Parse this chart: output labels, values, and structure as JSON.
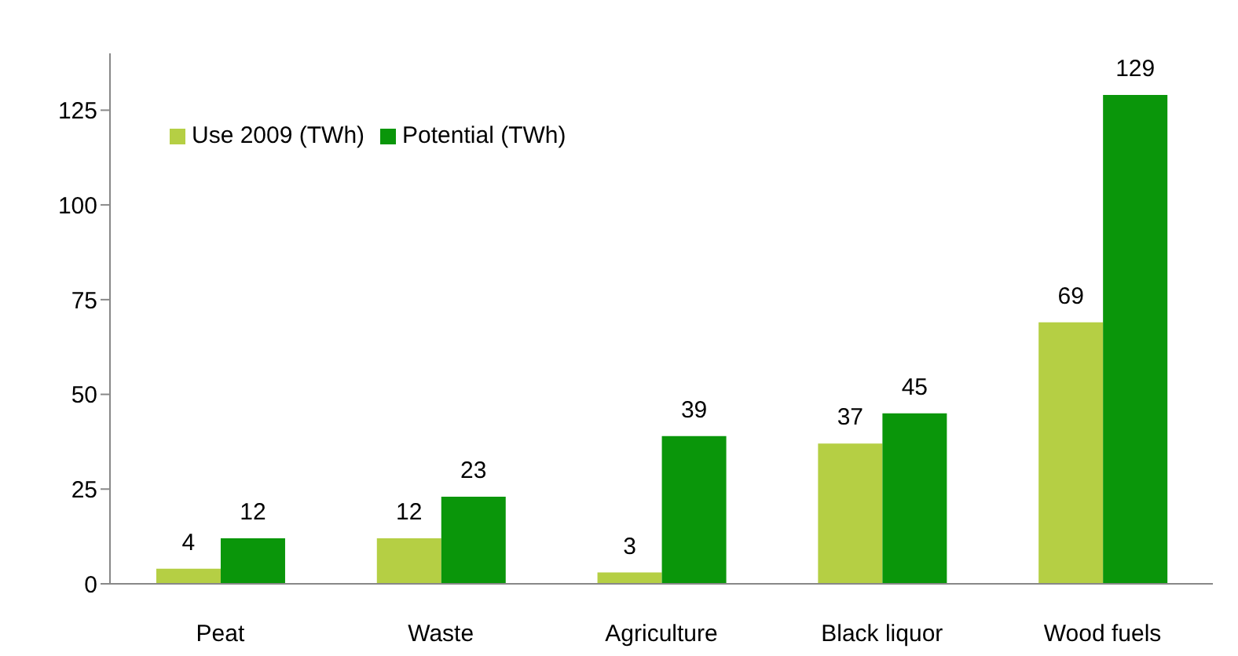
{
  "chart_data": {
    "type": "bar",
    "categories": [
      "Peat",
      "Waste",
      "Agriculture",
      "Black liquor",
      "Wood fuels"
    ],
    "series": [
      {
        "name": "Use 2009 (TWh)",
        "color": "#b5cf44",
        "values": [
          4,
          12,
          3,
          37,
          69
        ]
      },
      {
        "name": "Potential (TWh)",
        "color": "#0a960a",
        "values": [
          12,
          23,
          39,
          45,
          129
        ]
      }
    ],
    "ylim": [
      0,
      140
    ],
    "yticks": [
      0,
      25,
      50,
      75,
      100,
      125
    ],
    "grid": false,
    "legend": "top left",
    "data_labels": true
  }
}
